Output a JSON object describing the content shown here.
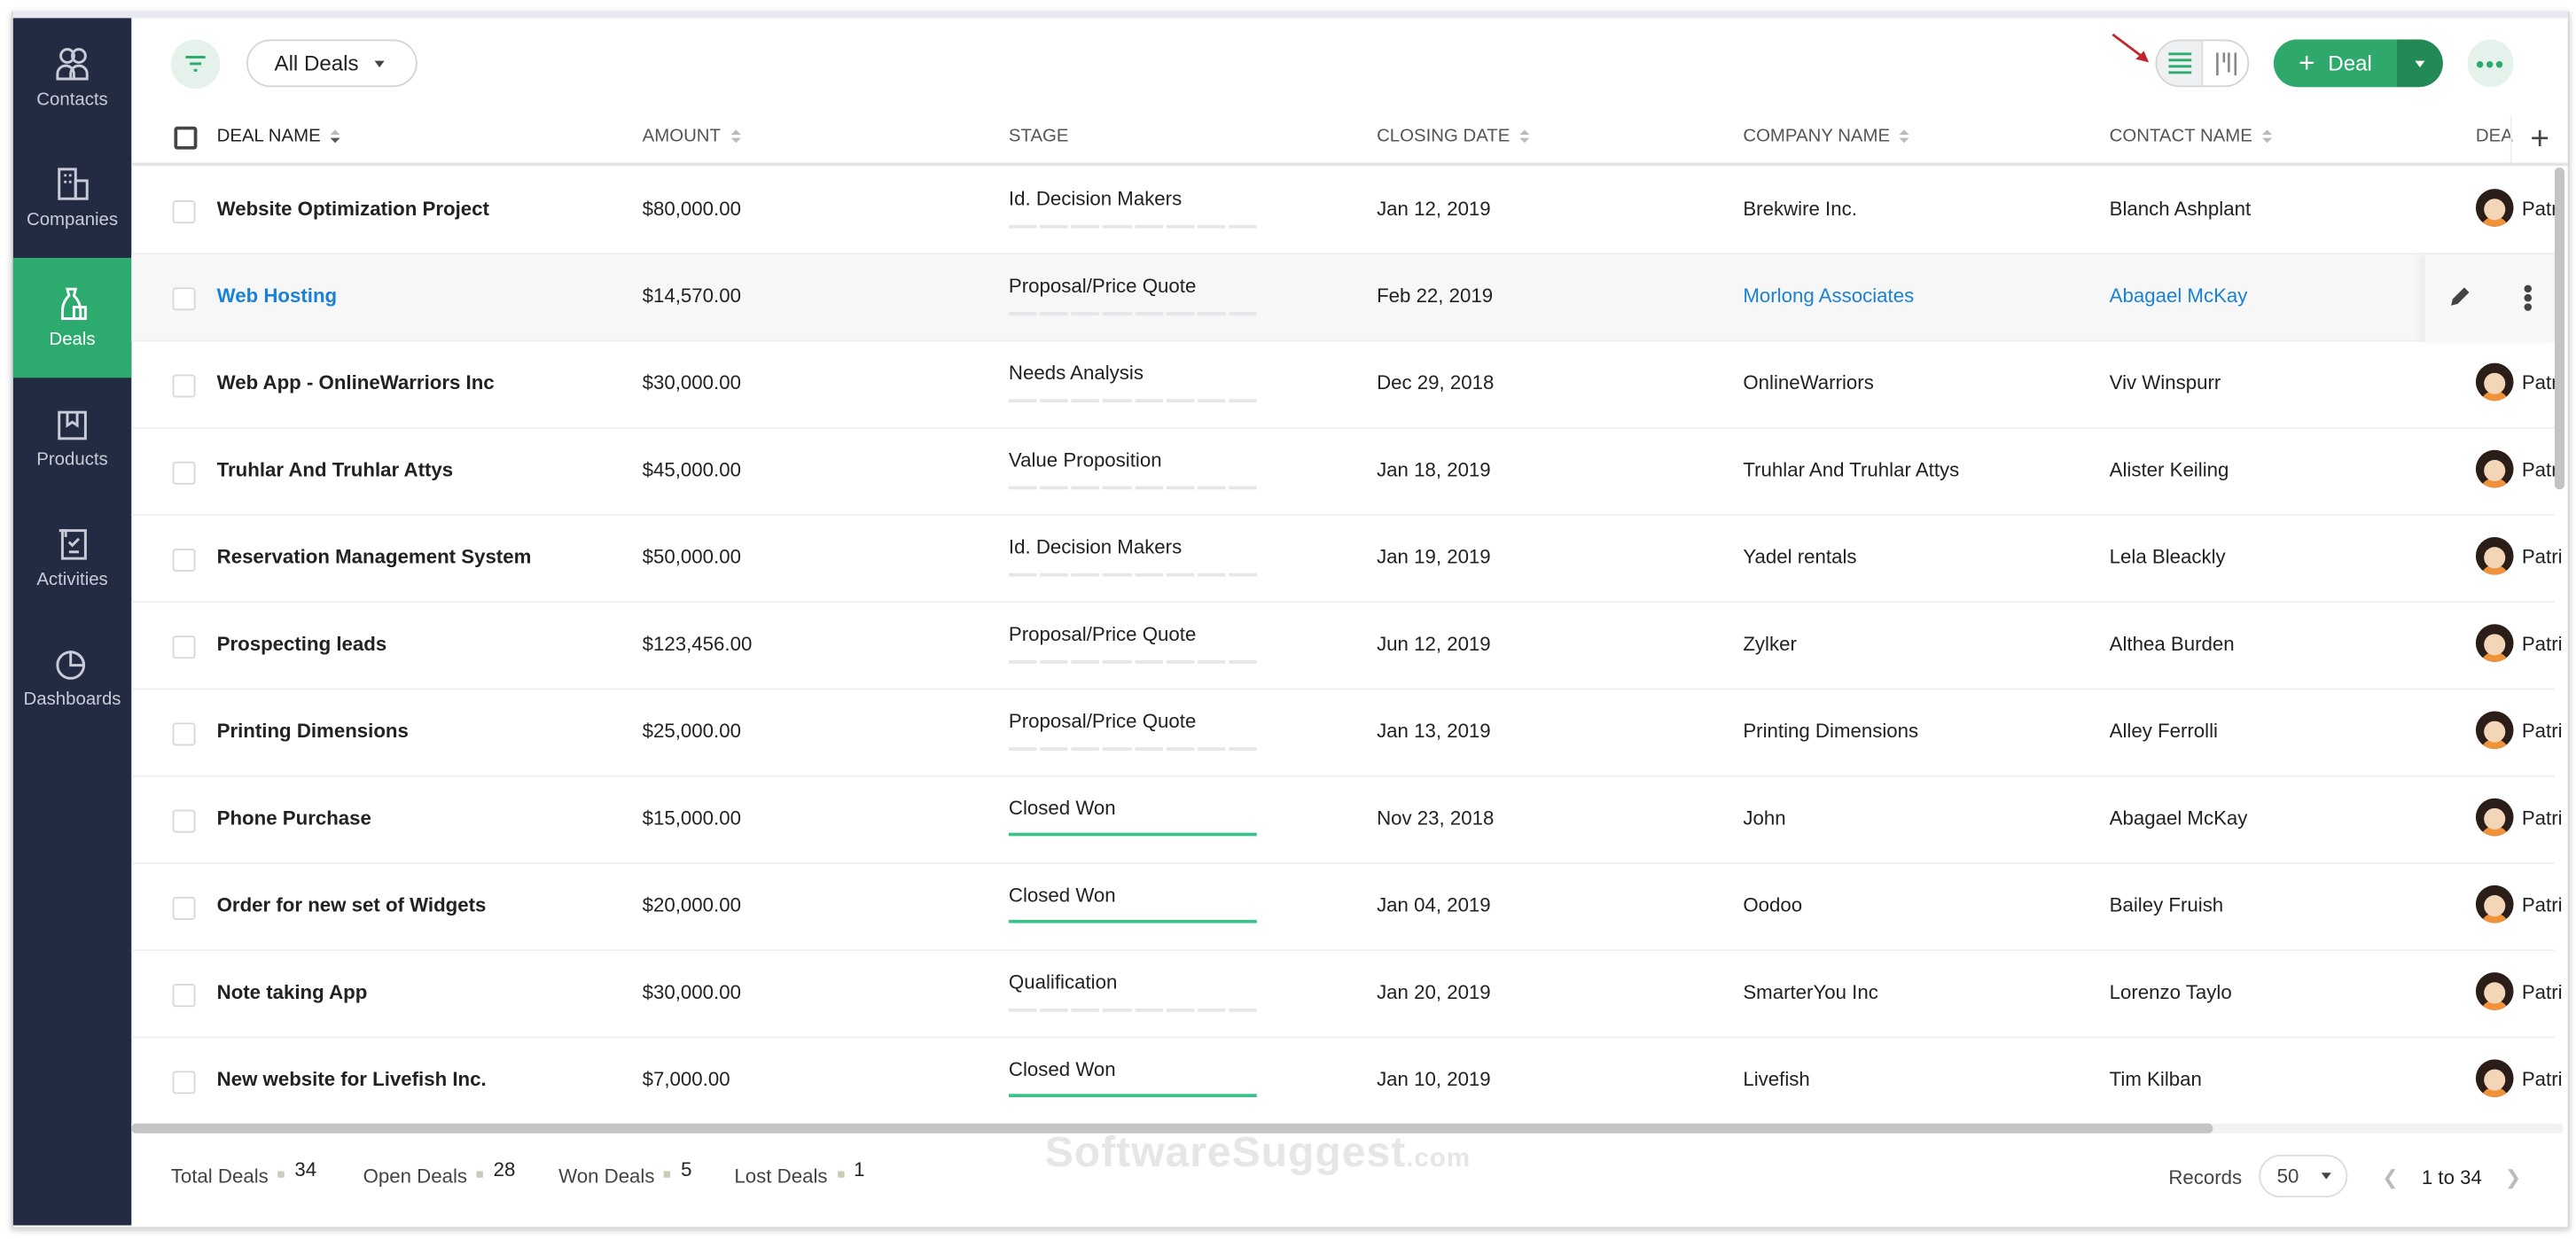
{
  "sidebar": {
    "items": [
      {
        "label": "Contacts",
        "icon": "contacts-icon",
        "active": false
      },
      {
        "label": "Companies",
        "icon": "companies-icon",
        "active": false
      },
      {
        "label": "Deals",
        "icon": "deals-icon",
        "active": true
      },
      {
        "label": "Products",
        "icon": "products-icon",
        "active": false
      },
      {
        "label": "Activities",
        "icon": "activities-icon",
        "active": false
      },
      {
        "label": "Dashboards",
        "icon": "dashboards-icon",
        "active": false
      }
    ]
  },
  "toolbar": {
    "view_filter": "All Deals",
    "add_label": "Deal",
    "view_mode": "list"
  },
  "columns": [
    "DEAL NAME",
    "AMOUNT",
    "STAGE",
    "CLOSING DATE",
    "COMPANY NAME",
    "CONTACT NAME",
    "DEA"
  ],
  "rows": [
    {
      "name": "Website Optimization Project",
      "amount": "$80,000.00",
      "stage": "Id. Decision Makers",
      "closing": "Jan 12, 2019",
      "company": "Brekwire Inc.",
      "contact": "Blanch Ashplant",
      "owner": "Patri"
    },
    {
      "name": "Web Hosting",
      "amount": "$14,570.00",
      "stage": "Proposal/Price Quote",
      "closing": "Feb 22, 2019",
      "company": "Morlong Associates",
      "contact": "Abagael McKay",
      "owner": "",
      "hover": true
    },
    {
      "name": "Web App - OnlineWarriors Inc",
      "amount": "$30,000.00",
      "stage": "Needs Analysis",
      "closing": "Dec 29, 2018",
      "company": "OnlineWarriors",
      "contact": "Viv Winspurr",
      "owner": "Patri"
    },
    {
      "name": "Truhlar And Truhlar Attys",
      "amount": "$45,000.00",
      "stage": "Value Proposition",
      "closing": "Jan 18, 2019",
      "company": "Truhlar And Truhlar Attys",
      "contact": "Alister Keiling",
      "owner": "Patri"
    },
    {
      "name": "Reservation Management System",
      "amount": "$50,000.00",
      "stage": "Id. Decision Makers",
      "closing": "Jan 19, 2019",
      "company": "Yadel rentals",
      "contact": "Lela Bleackly",
      "owner": "Patri"
    },
    {
      "name": "Prospecting leads",
      "amount": "$123,456.00",
      "stage": "Proposal/Price Quote",
      "closing": "Jun 12, 2019",
      "company": "Zylker",
      "contact": "Althea Burden",
      "owner": "Patri"
    },
    {
      "name": "Printing Dimensions",
      "amount": "$25,000.00",
      "stage": "Proposal/Price Quote",
      "closing": "Jan 13, 2019",
      "company": "Printing Dimensions",
      "contact": "Alley Ferrolli",
      "owner": "Patri"
    },
    {
      "name": "Phone Purchase",
      "amount": "$15,000.00",
      "stage": "Closed Won",
      "closing": "Nov 23, 2018",
      "company": "John",
      "contact": "Abagael McKay",
      "owner": "Patri"
    },
    {
      "name": "Order for new set of Widgets",
      "amount": "$20,000.00",
      "stage": "Closed Won",
      "closing": "Jan 04, 2019",
      "company": "Oodoo",
      "contact": "Bailey Fruish",
      "owner": "Patri"
    },
    {
      "name": "Note taking App",
      "amount": "$30,000.00",
      "stage": "Qualification",
      "closing": "Jan 20, 2019",
      "company": "SmarterYou Inc",
      "contact": "Lorenzo Taylo",
      "owner": "Patri"
    },
    {
      "name": "New website for Livefish Inc.",
      "amount": "$7,000.00",
      "stage": "Closed Won",
      "closing": "Jan 10, 2019",
      "company": "Livefish",
      "contact": "Tim Kilban",
      "owner": "Patri"
    }
  ],
  "footer": {
    "stats": [
      {
        "label": "Total Deals",
        "value": "34"
      },
      {
        "label": "Open Deals",
        "value": "28"
      },
      {
        "label": "Won Deals",
        "value": "5"
      },
      {
        "label": "Lost Deals",
        "value": "1"
      }
    ],
    "records_label": "Records",
    "records_per_page": "50",
    "range": "1 to 34"
  },
  "watermark": "SoftwareSuggest",
  "watermark_suffix": ".com",
  "colors": {
    "sidebar": "#222b42",
    "accent": "#2daa6e",
    "link": "#1a82d6",
    "won_bar": "#3cc18a"
  }
}
